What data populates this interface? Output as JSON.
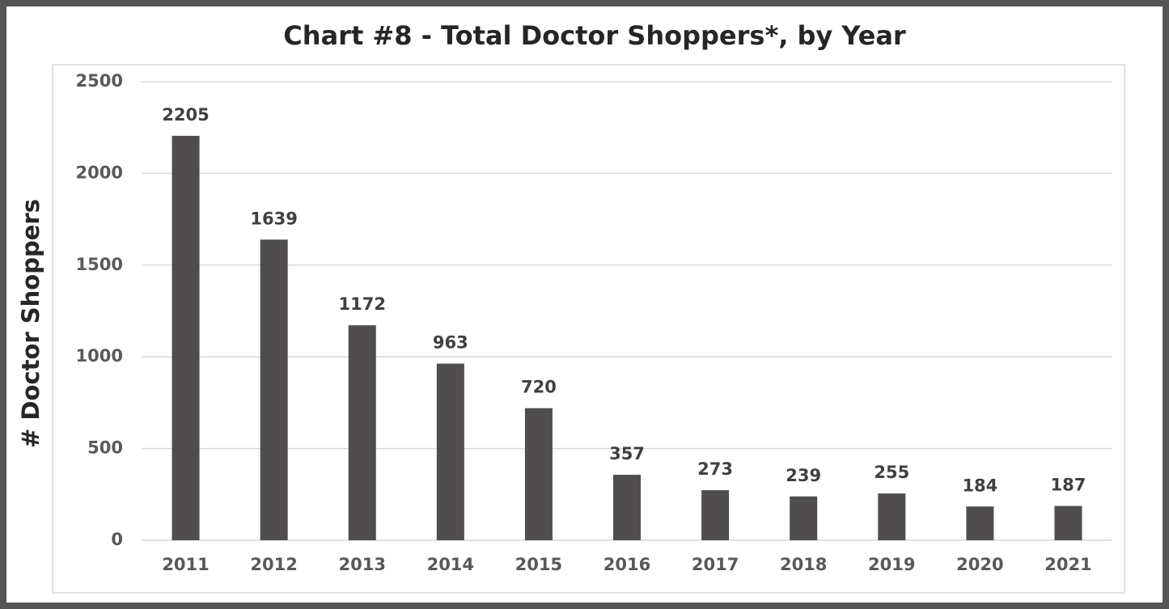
{
  "chart_data": {
    "type": "bar",
    "title": "Chart #8 - Total Doctor Shoppers*, by Year",
    "y_label": "# Doctor Shoppers",
    "categories": [
      "2011",
      "2012",
      "2013",
      "2014",
      "2015",
      "2016",
      "2017",
      "2018",
      "2019",
      "2020",
      "2021"
    ],
    "values": [
      2205,
      1639,
      1172,
      963,
      720,
      357,
      273,
      239,
      255,
      184,
      187
    ],
    "color": "#4f4d4e",
    "ylim": [
      0,
      2500
    ],
    "yticks": [
      0,
      500,
      1000,
      1500,
      2000,
      2500
    ],
    "grid": true
  }
}
